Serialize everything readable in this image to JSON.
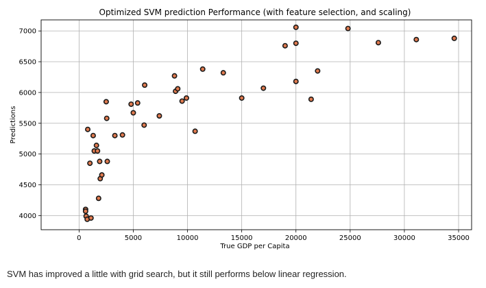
{
  "chart_data": {
    "type": "scatter",
    "title": "Optimized SVM prediction Performance (with feature selection, and scaling)",
    "xlabel": "True GDP per Capita",
    "ylabel": "Predictions",
    "xlim": [
      -3500,
      36200
    ],
    "ylim": [
      3770,
      7180
    ],
    "xticks": [
      0,
      5000,
      10000,
      15000,
      20000,
      25000,
      30000,
      35000
    ],
    "yticks": [
      4000,
      4500,
      5000,
      5500,
      6000,
      6500,
      7000
    ],
    "grid": true,
    "marker_face_color": "#e07a4f",
    "marker_edge_color": "#1a1a1a",
    "points": [
      [
        600,
        4100
      ],
      [
        600,
        4070
      ],
      [
        650,
        3990
      ],
      [
        750,
        3940
      ],
      [
        1100,
        3960
      ],
      [
        800,
        5400
      ],
      [
        1000,
        4850
      ],
      [
        1300,
        5300
      ],
      [
        1400,
        5050
      ],
      [
        1600,
        5140
      ],
      [
        1700,
        5050
      ],
      [
        1800,
        4280
      ],
      [
        1900,
        4880
      ],
      [
        1950,
        4600
      ],
      [
        2100,
        4660
      ],
      [
        2500,
        5850
      ],
      [
        2550,
        5580
      ],
      [
        2600,
        4880
      ],
      [
        3300,
        5300
      ],
      [
        4000,
        5310
      ],
      [
        4800,
        5810
      ],
      [
        5000,
        5670
      ],
      [
        5400,
        5830
      ],
      [
        6000,
        5470
      ],
      [
        6050,
        6120
      ],
      [
        7400,
        5620
      ],
      [
        8800,
        6270
      ],
      [
        8900,
        6020
      ],
      [
        9100,
        6060
      ],
      [
        9500,
        5860
      ],
      [
        9900,
        5910
      ],
      [
        10700,
        5370
      ],
      [
        11400,
        6380
      ],
      [
        13300,
        6320
      ],
      [
        15000,
        5910
      ],
      [
        17000,
        6070
      ],
      [
        19000,
        6760
      ],
      [
        20000,
        7060
      ],
      [
        20000,
        6800
      ],
      [
        20000,
        6180
      ],
      [
        21400,
        5890
      ],
      [
        22000,
        6350
      ],
      [
        24800,
        7040
      ],
      [
        27600,
        6810
      ],
      [
        31100,
        6860
      ],
      [
        34600,
        6880
      ]
    ]
  },
  "caption": "SVM has improved a little with grid search, but it still performs below linear regression."
}
